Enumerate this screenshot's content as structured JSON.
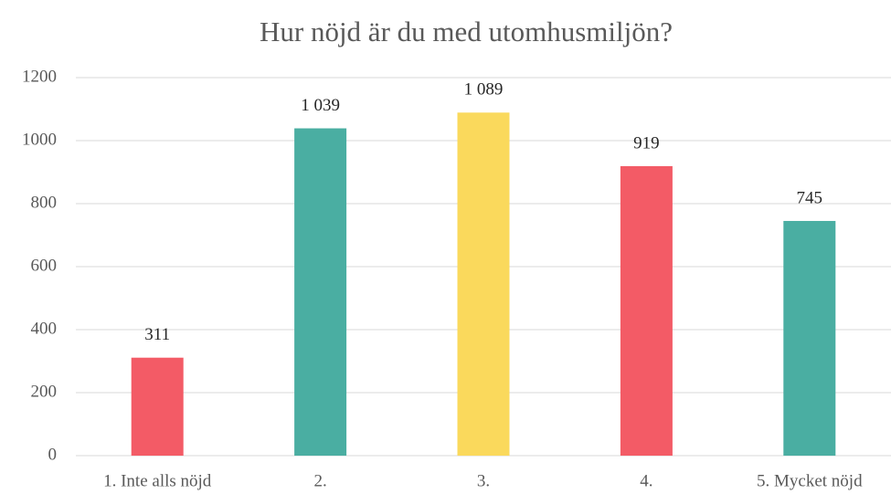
{
  "chart_data": {
    "type": "bar",
    "title": "Hur nöjd är du med utomhusmiljön?",
    "categories": [
      "1. Inte alls nöjd",
      "2.",
      "3.",
      "4.",
      "5. Mycket nöjd"
    ],
    "values": [
      311,
      1039,
      1089,
      919,
      745
    ],
    "value_labels": [
      "311",
      "1 039",
      "1 089",
      "919",
      "745"
    ],
    "colors": [
      "#f35b66",
      "#4aaea2",
      "#fad95c",
      "#f35b66",
      "#4aaea2"
    ],
    "ylim": [
      0,
      1200
    ],
    "yticks": [
      0,
      200,
      400,
      600,
      800,
      1000,
      1200
    ],
    "grid": true
  }
}
